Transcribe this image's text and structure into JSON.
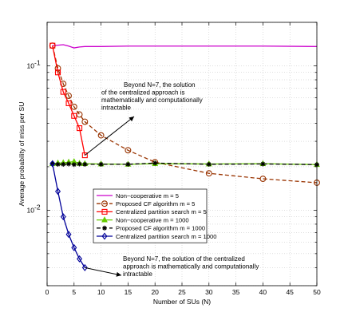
{
  "chart_data": {
    "type": "line",
    "xlabel": "Number of SUs (N)",
    "ylabel": "Average probability of miss per SU",
    "xlim": [
      0,
      50
    ],
    "ylim": [
      0.003,
      0.2
    ],
    "y_scale": "log",
    "grid": true,
    "x_ticks": [
      0,
      5,
      10,
      15,
      20,
      25,
      30,
      35,
      40,
      45,
      50
    ],
    "y_ticks": [
      {
        "value": 0.1,
        "base": "10",
        "exp": "-1"
      },
      {
        "value": 0.01,
        "base": "10",
        "exp": "-2"
      }
    ],
    "legend_position": "center-bottom",
    "series": [
      {
        "name": "Non−cooperative m = 5",
        "color": "#cc00cc",
        "dash": "",
        "marker": "none",
        "x": [
          1,
          2,
          3,
          4,
          5,
          6,
          7,
          10,
          15,
          20,
          30,
          40,
          50
        ],
        "y": [
          0.138,
          0.139,
          0.14,
          0.137,
          0.133,
          0.135,
          0.136,
          0.136,
          0.137,
          0.137,
          0.137,
          0.137,
          0.136
        ]
      },
      {
        "name": "Proposed CF algorithm m = 5",
        "color": "#993300",
        "dash": "5,3",
        "marker": "circle",
        "x": [
          1,
          2,
          3,
          4,
          5,
          6,
          7,
          10,
          15,
          20,
          30,
          40,
          50
        ],
        "y": [
          0.138,
          0.096,
          0.075,
          0.062,
          0.052,
          0.046,
          0.041,
          0.033,
          0.026,
          0.0215,
          0.018,
          0.0165,
          0.0155
        ]
      },
      {
        "name": "Centralized partition search m = 5",
        "color": "#ff0000",
        "dash": "",
        "marker": "square",
        "x": [
          1,
          2,
          3,
          4,
          5,
          6,
          7
        ],
        "y": [
          0.138,
          0.09,
          0.066,
          0.055,
          0.045,
          0.037,
          0.024
        ]
      },
      {
        "name": "Non−cooperative m = 1000",
        "color": "#66cc00",
        "dash": "",
        "marker": "triangle",
        "x": [
          1,
          2,
          3,
          4,
          5,
          6,
          7,
          10,
          15,
          20,
          30,
          40,
          50
        ],
        "y": [
          0.021,
          0.0212,
          0.0213,
          0.0215,
          0.0217,
          0.0211,
          0.021,
          0.0209,
          0.0208,
          0.021,
          0.0209,
          0.021,
          0.0207
        ]
      },
      {
        "name": "Proposed CF algorithm m = 1000",
        "color": "#000000",
        "dash": "5,3",
        "marker": "star",
        "x": [
          1,
          2,
          3,
          4,
          5,
          6,
          7,
          10,
          15,
          20,
          30,
          40,
          50
        ],
        "y": [
          0.021,
          0.0208,
          0.0208,
          0.0209,
          0.0207,
          0.0209,
          0.0208,
          0.0208,
          0.0208,
          0.0212,
          0.0208,
          0.0209,
          0.0207
        ]
      },
      {
        "name": "Centralized partition search m = 1000",
        "color": "#000099",
        "dash": "",
        "marker": "diamond",
        "x": [
          1,
          2,
          3,
          4,
          5,
          6,
          7
        ],
        "y": [
          0.021,
          0.0135,
          0.009,
          0.0068,
          0.0055,
          0.0046,
          0.004
        ]
      }
    ],
    "annotations": [
      {
        "lines": [
          "Beyond N=7, the solution",
          "of  the centralized approach is",
          "mathematically and computationally",
          "intractable"
        ],
        "target": [
          7,
          0.024
        ]
      },
      {
        "lines": [
          "Beyond N=7, the solution of the centralized",
          "approach is mathematically and computationally",
          "intractable"
        ],
        "target": [
          7,
          0.004
        ]
      }
    ]
  }
}
